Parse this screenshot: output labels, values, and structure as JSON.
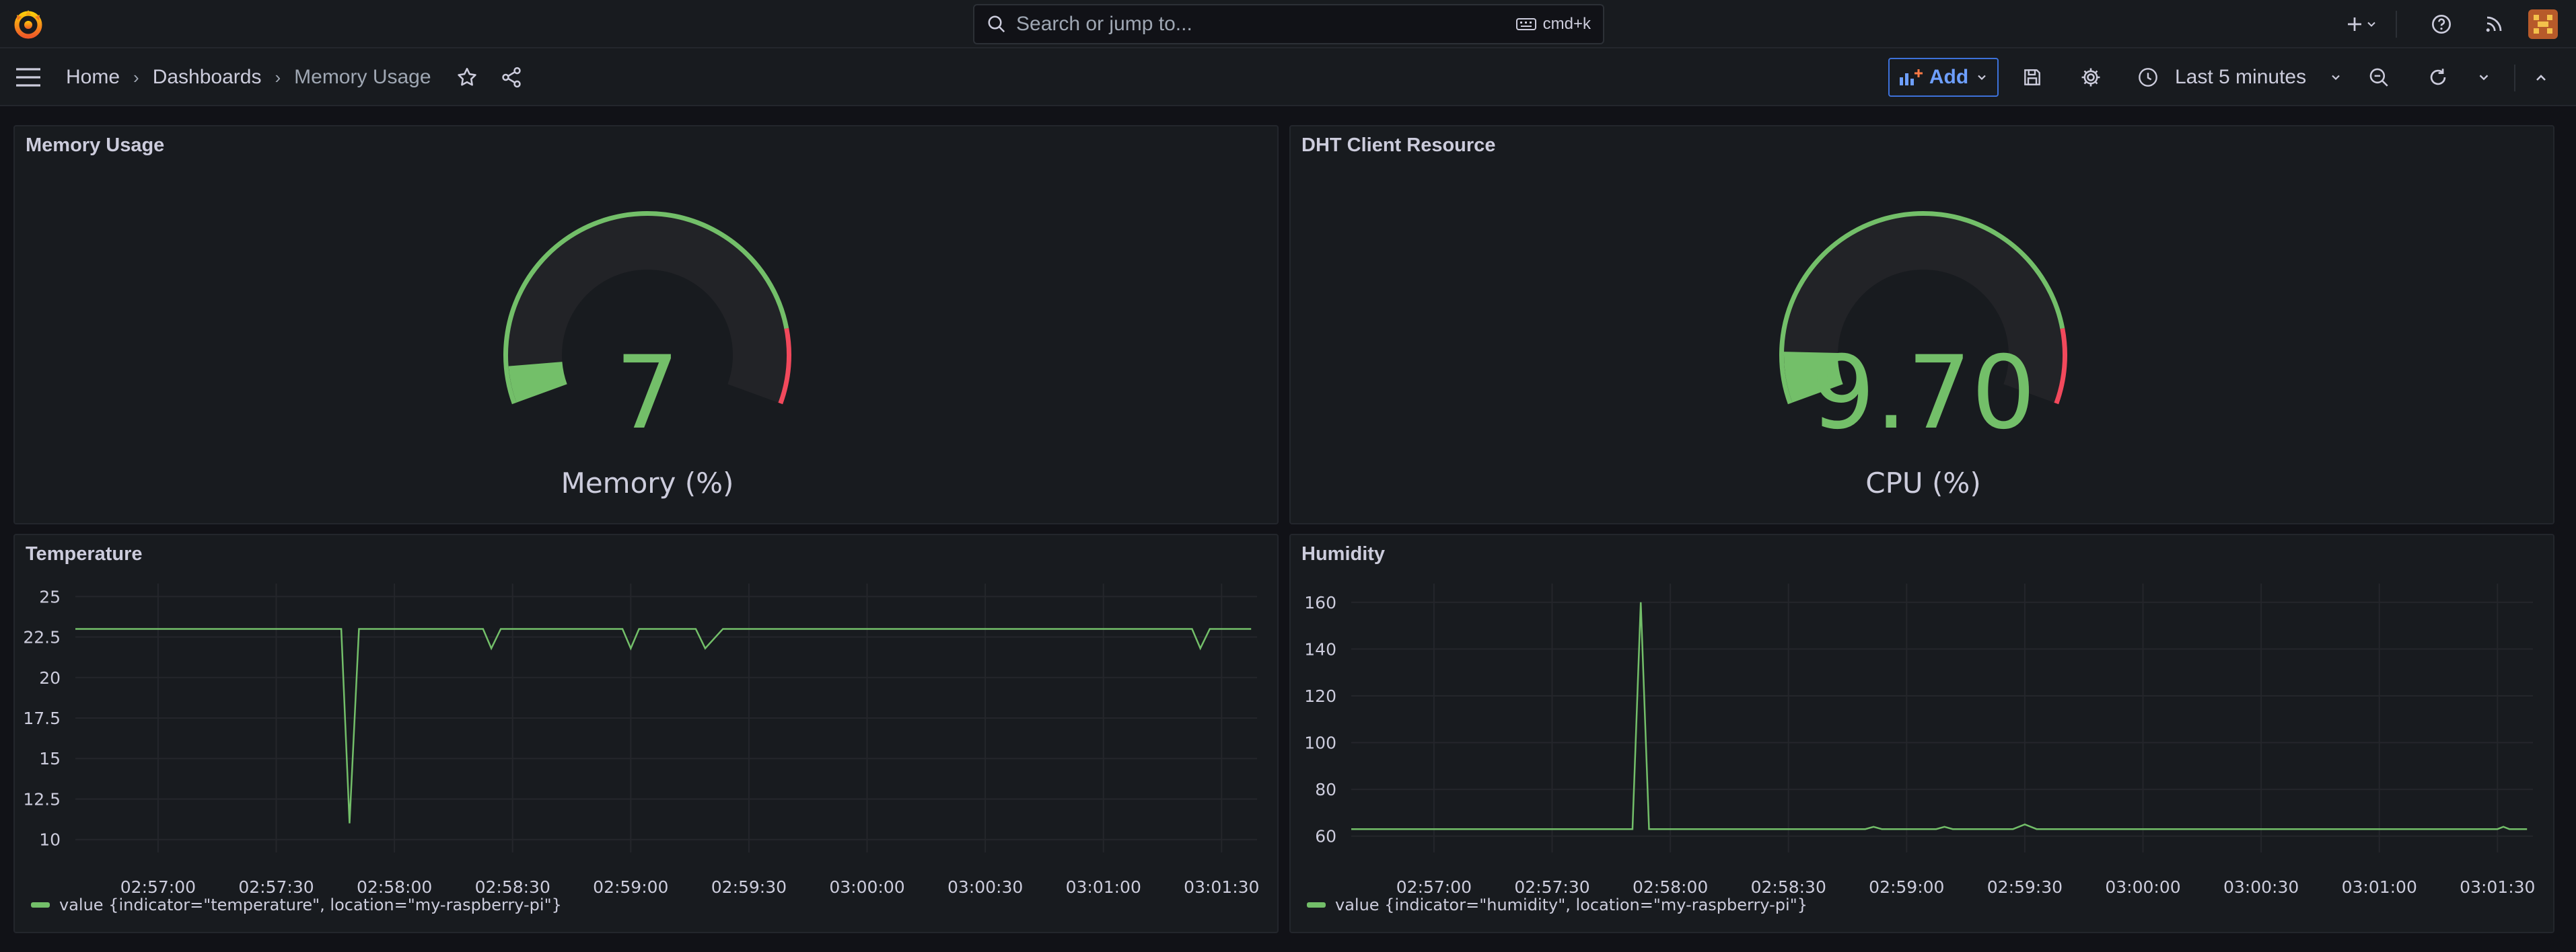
{
  "search": {
    "placeholder": "Search or jump to...",
    "shortcut": "cmd+k"
  },
  "breadcrumb": {
    "home": "Home",
    "dashboards": "Dashboards",
    "current": "Memory Usage"
  },
  "toolbar": {
    "add_label": "Add",
    "time_range": "Last 5 minutes"
  },
  "panels": {
    "memory": {
      "title": "Memory Usage",
      "value": "7",
      "label": "Memory (%)",
      "fraction": 0.07
    },
    "dht": {
      "title": "DHT Client Resource",
      "value": "9.70",
      "label": "CPU (%)",
      "fraction": 0.097
    },
    "temperature": {
      "title": "Temperature",
      "legend": "value {indicator=\"temperature\", location=\"my-raspberry-pi\"}"
    },
    "humidity": {
      "title": "Humidity",
      "legend": "value {indicator=\"humidity\", location=\"my-raspberry-pi\"}"
    }
  },
  "colors": {
    "green": "#73bf69",
    "red": "#f2495c",
    "accent": "#6e9fff"
  },
  "chart_data": [
    {
      "type": "line",
      "name": "temperature",
      "x_ticks": [
        "02:57:00",
        "02:57:30",
        "02:58:00",
        "02:58:30",
        "02:59:00",
        "02:59:30",
        "03:00:00",
        "03:00:30",
        "03:01:00",
        "03:01:30"
      ],
      "y_ticks": [
        "25",
        "22.5",
        "20",
        "17.5",
        "15",
        "12.5",
        "10"
      ],
      "ylim": [
        9.2,
        25.8
      ],
      "xlim": [
        -0.7,
        9.3
      ],
      "points": [
        [
          -0.7,
          23
        ],
        [
          1.55,
          23
        ],
        [
          1.62,
          11
        ],
        [
          1.7,
          23
        ],
        [
          2.75,
          23
        ],
        [
          2.82,
          21.8
        ],
        [
          2.9,
          23
        ],
        [
          3.93,
          23
        ],
        [
          4.0,
          21.8
        ],
        [
          4.07,
          23
        ],
        [
          4.55,
          23
        ],
        [
          4.63,
          21.8
        ],
        [
          4.78,
          23
        ],
        [
          8.75,
          23
        ],
        [
          8.82,
          21.8
        ],
        [
          8.9,
          23
        ],
        [
          9.25,
          23
        ]
      ]
    },
    {
      "type": "line",
      "name": "humidity",
      "x_ticks": [
        "02:57:00",
        "02:57:30",
        "02:58:00",
        "02:58:30",
        "02:59:00",
        "02:59:30",
        "03:00:00",
        "03:00:30",
        "03:01:00",
        "03:01:30"
      ],
      "y_ticks": [
        "160",
        "140",
        "120",
        "100",
        "80",
        "60"
      ],
      "ylim": [
        53,
        168
      ],
      "xlim": [
        -0.7,
        9.3
      ],
      "points": [
        [
          -0.7,
          63
        ],
        [
          1.68,
          63
        ],
        [
          1.75,
          160
        ],
        [
          1.82,
          63
        ],
        [
          3.65,
          63
        ],
        [
          3.72,
          64
        ],
        [
          3.79,
          63
        ],
        [
          4.25,
          63
        ],
        [
          4.32,
          64
        ],
        [
          4.39,
          63
        ],
        [
          4.9,
          63
        ],
        [
          5.0,
          65
        ],
        [
          5.1,
          63
        ],
        [
          9.0,
          63
        ],
        [
          9.05,
          64
        ],
        [
          9.1,
          63
        ],
        [
          9.25,
          63
        ]
      ]
    }
  ]
}
